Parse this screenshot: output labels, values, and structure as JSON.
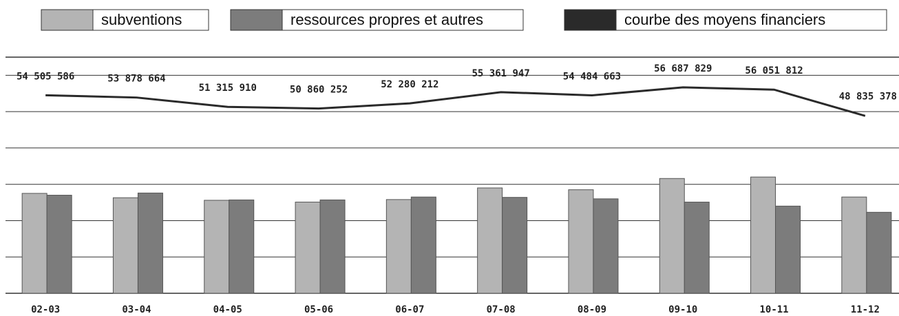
{
  "chart_data": {
    "type": "bar",
    "categories": [
      "02-03",
      "03-04",
      "04-05",
      "05-06",
      "06-07",
      "07-08",
      "08-09",
      "09-10",
      "10-11",
      "11-12"
    ],
    "series": [
      {
        "name": "subventions",
        "color": "#b4b4b4",
        "values": [
          27500000,
          26300000,
          25600000,
          25100000,
          25800000,
          29000000,
          28500000,
          31600000,
          32000000,
          26500000
        ]
      },
      {
        "name": "ressources propres et autres",
        "color": "#7c7c7c",
        "values": [
          27000000,
          27600000,
          25700000,
          25700000,
          26500000,
          26400000,
          26000000,
          25100000,
          24000000,
          22300000
        ]
      },
      {
        "name": "courbe des moyens financiers",
        "type": "line",
        "color": "#2a2a2a",
        "values": [
          54505586,
          53878664,
          51315910,
          50860252,
          52280212,
          55361947,
          54484663,
          56687829,
          56051812,
          48835378
        ],
        "value_labels": [
          "54 505 586",
          "53 878 664",
          "51 315 910",
          "50 860 252",
          "52 280 212",
          "55 361 947",
          "54 484 663",
          "56 687 829",
          "56 051 812",
          "48 835 378"
        ]
      }
    ],
    "ylim": [
      0,
      65000000
    ],
    "yticks": [
      0,
      10000000,
      20000000,
      30000000,
      40000000,
      50000000,
      60000000
    ],
    "grid": true
  }
}
